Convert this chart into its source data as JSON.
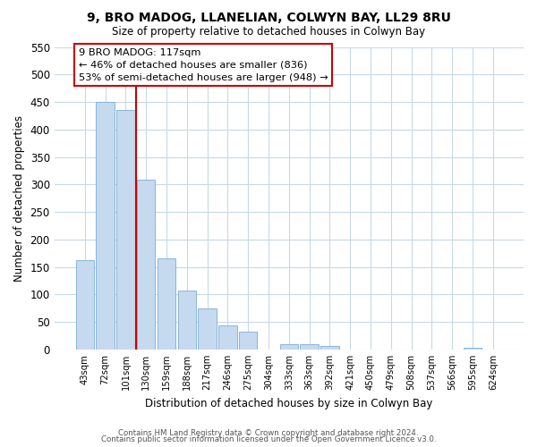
{
  "title": "9, BRO MADOG, LLANELIAN, COLWYN BAY, LL29 8RU",
  "subtitle": "Size of property relative to detached houses in Colwyn Bay",
  "xlabel": "Distribution of detached houses by size in Colwyn Bay",
  "ylabel": "Number of detached properties",
  "bar_labels": [
    "43sqm",
    "72sqm",
    "101sqm",
    "130sqm",
    "159sqm",
    "188sqm",
    "217sqm",
    "246sqm",
    "275sqm",
    "304sqm",
    "333sqm",
    "363sqm",
    "392sqm",
    "421sqm",
    "450sqm",
    "479sqm",
    "508sqm",
    "537sqm",
    "566sqm",
    "595sqm",
    "624sqm"
  ],
  "bar_values": [
    162,
    450,
    435,
    308,
    165,
    107,
    74,
    43,
    33,
    0,
    10,
    10,
    6,
    0,
    0,
    0,
    0,
    0,
    0,
    3,
    0
  ],
  "bar_color": "#c5d9ef",
  "bar_edgecolor": "#7badd4",
  "vline_x": 2.5,
  "vline_color": "#cc0000",
  "ylim": [
    0,
    550
  ],
  "yticks": [
    0,
    50,
    100,
    150,
    200,
    250,
    300,
    350,
    400,
    450,
    500,
    550
  ],
  "annotation_title": "9 BRO MADOG: 117sqm",
  "annotation_line1": "← 46% of detached houses are smaller (836)",
  "annotation_line2": "53% of semi-detached houses are larger (948) →",
  "footer1": "Contains HM Land Registry data © Crown copyright and database right 2024.",
  "footer2": "Contains public sector information licensed under the Open Government Licence v3.0.",
  "background_color": "#ffffff",
  "grid_color": "#c8d8ea"
}
